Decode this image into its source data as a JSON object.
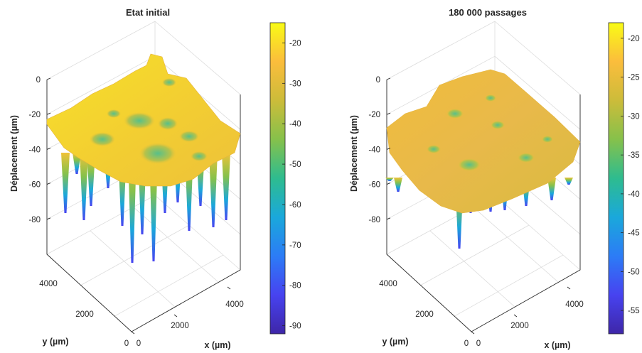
{
  "chart_data": [
    {
      "type": "surface",
      "title": "Etat initial",
      "zlabel": "Déplacement (µm)",
      "xlabel": "x (µm)",
      "ylabel": "y (µm)",
      "x_ticks": [
        "0",
        "2000",
        "4000"
      ],
      "y_ticks": [
        "0",
        "2000",
        "4000"
      ],
      "z_ticks": [
        "0",
        "-20",
        "-40",
        "-60",
        "-80"
      ],
      "x_range": [
        0,
        5000
      ],
      "y_range": [
        0,
        5000
      ],
      "z_range": [
        -95,
        5
      ],
      "colormap": "parula",
      "colorbar": {
        "range": [
          -92,
          -15
        ],
        "ticks": [
          "-20",
          "-30",
          "-40",
          "-50",
          "-60",
          "-70",
          "-80",
          "-90"
        ]
      },
      "grid": true
    },
    {
      "type": "surface",
      "title": "180 000 passages",
      "zlabel": "Déplacement (µm)",
      "xlabel": "x (µm)",
      "ylabel": "y (µm)",
      "x_ticks": [
        "0",
        "2000",
        "4000"
      ],
      "y_ticks": [
        "0",
        "2000",
        "4000"
      ],
      "z_ticks": [
        "0",
        "-20",
        "-40",
        "-60",
        "-80"
      ],
      "x_range": [
        0,
        5000
      ],
      "y_range": [
        0,
        5000
      ],
      "z_range": [
        -95,
        5
      ],
      "colormap": "parula",
      "colorbar": {
        "range": [
          -58,
          -18
        ],
        "ticks": [
          "-20",
          "-25",
          "-30",
          "-35",
          "-40",
          "-45",
          "-50",
          "-55"
        ]
      },
      "grid": true
    }
  ],
  "colors": {
    "parula": [
      "#3e26a8",
      "#4743f0",
      "#2c7cf6",
      "#1aa8db",
      "#2ebc8f",
      "#86c14b",
      "#ccbc3a",
      "#fbbd3c",
      "#f9fb15"
    ]
  }
}
